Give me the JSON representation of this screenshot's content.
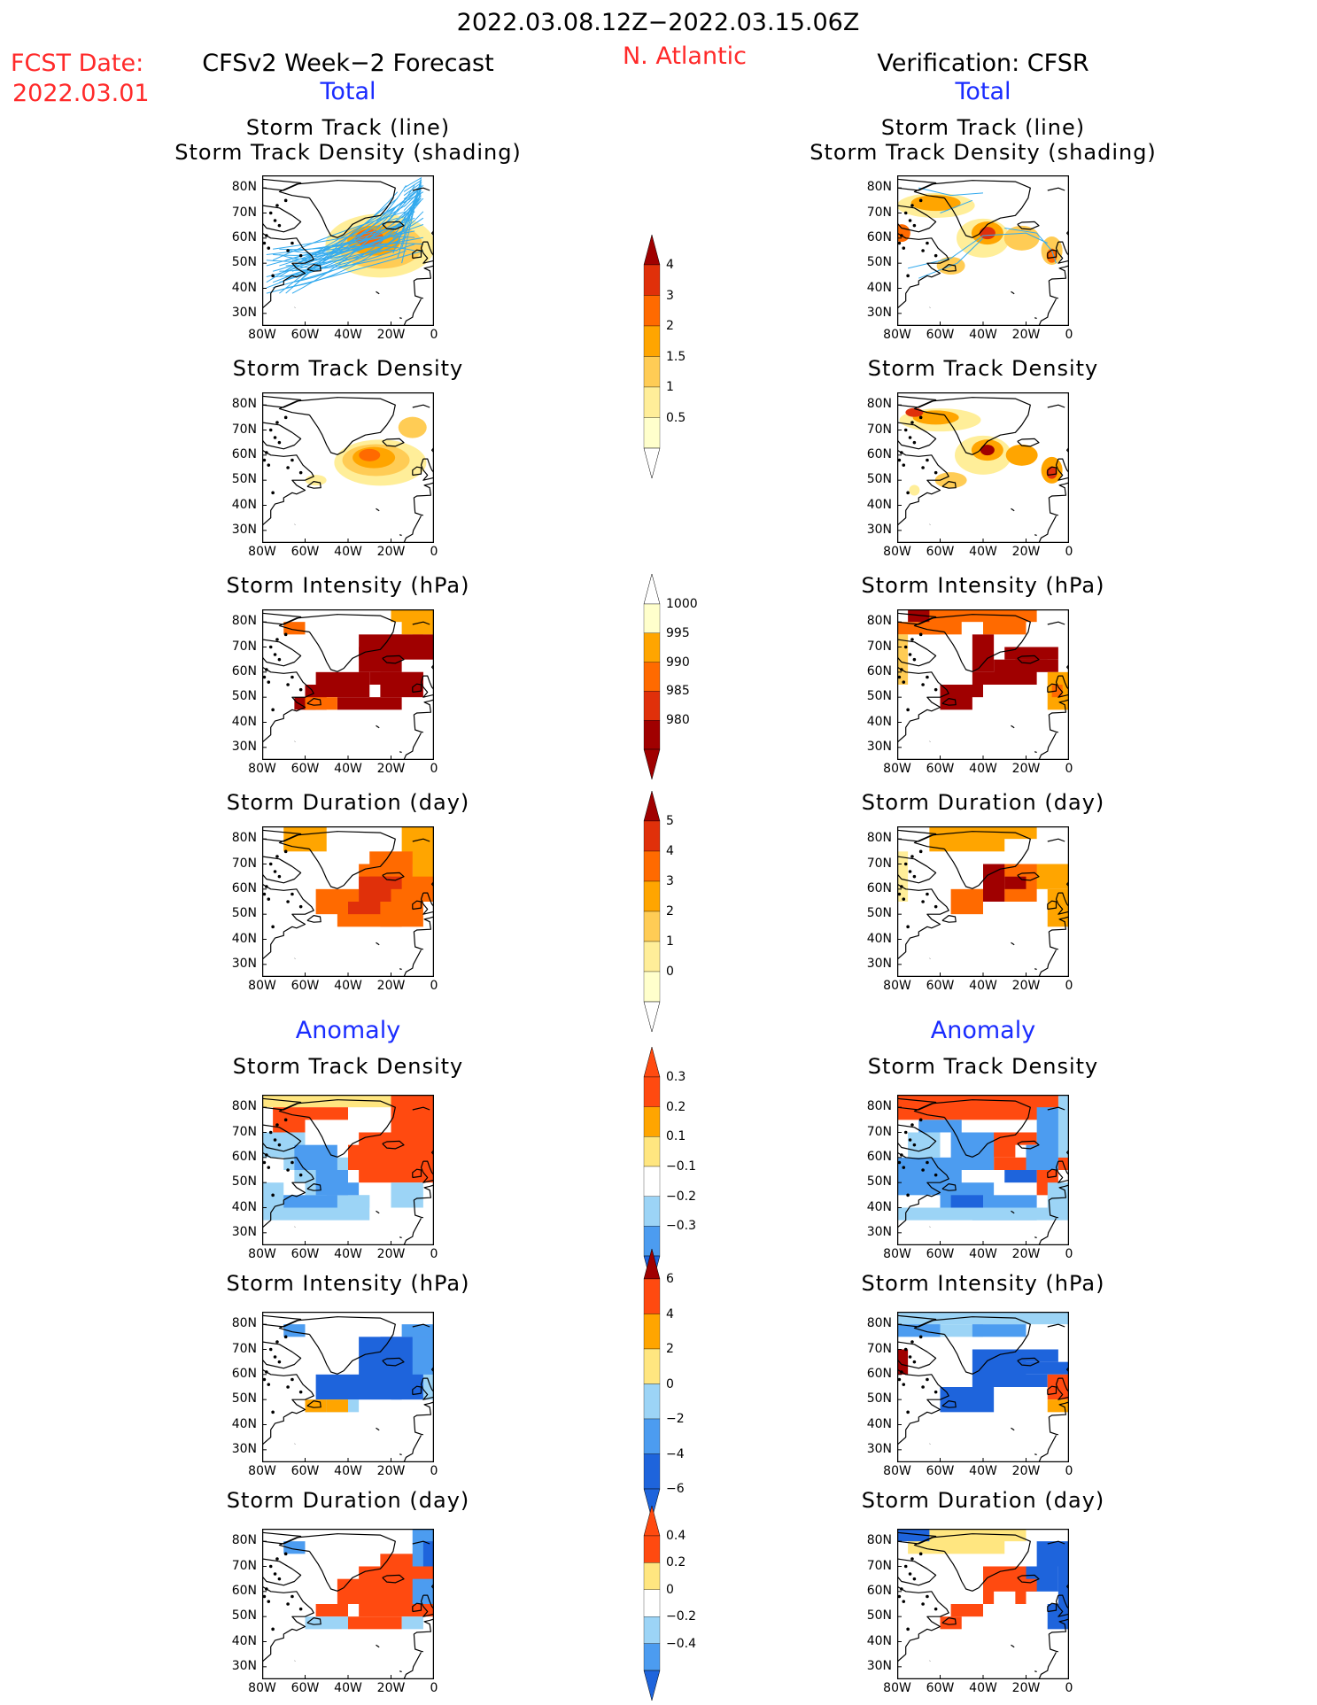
{
  "header": {
    "period": "2022.03.08.12Z−2022.03.15.06Z",
    "fcst_label": "FCST Date:",
    "fcst_date": "2022.03.01",
    "forecast_title": "CFSv2 Week−2 Forecast",
    "region": "N. Atlantic",
    "verification_title": "Verification: CFSR",
    "left_total": "Total",
    "right_total": "Total",
    "left_anomaly": "Anomaly",
    "right_anomaly": "Anomaly"
  },
  "axis": {
    "lat_ticks": [
      "80N",
      "70N",
      "60N",
      "50N",
      "40N",
      "30N"
    ],
    "lon_ticks": [
      "80W",
      "60W",
      "40W",
      "20W",
      "0"
    ]
  },
  "colors": {
    "track_line": "#33aaee",
    "levels_warm": [
      "#ffffcc",
      "#ffee99",
      "#ffcc55",
      "#ffa500",
      "#ff6a00",
      "#e0300a",
      "#a00000"
    ],
    "levels_anom": [
      "#1e64dc",
      "#4c9cf0",
      "#9cd4f6",
      "#ffffff",
      "#ffe680",
      "#ffa500",
      "#ff4a10",
      "#a00000"
    ]
  },
  "panels": {
    "titles": {
      "track_line": "Storm Track (line)",
      "track_shading": "Storm Track Density (shading)",
      "density": "Storm Track Density",
      "intensity": "Storm Intensity (hPa)",
      "duration": "Storm Duration (day)"
    }
  },
  "chart_data": [
    {
      "type": "heatmap",
      "title": "Storm Track (line) / Storm Track Density (shading)",
      "panel": "CFSv2 Week−2 Forecast, Total",
      "xlim": [
        "80W",
        "0"
      ],
      "ylim": [
        "25N",
        "85N"
      ],
      "colorbar": {
        "levels": [
          0.5,
          1,
          1.5,
          2,
          3,
          4
        ]
      },
      "summary": {
        "max_density_near": {
          "lon": "30W",
          "lat": "60N"
        },
        "peak_level": 3
      }
    },
    {
      "type": "heatmap",
      "title": "Storm Track (line) / Storm Track Density (shading)",
      "panel": "Verification: CFSR, Total",
      "xlim": [
        "80W",
        "0"
      ],
      "ylim": [
        "25N",
        "85N"
      ],
      "colorbar": {
        "levels": [
          0.5,
          1,
          1.5,
          2,
          3,
          4
        ]
      },
      "summary": {
        "max_density_near": {
          "lon": "40W",
          "lat": "63N"
        },
        "peak_level": 4
      }
    },
    {
      "type": "heatmap",
      "title": "Storm Track Density",
      "panel": "CFSv2 Week−2 Forecast, Total",
      "colorbar": {
        "levels": [
          0.5,
          1,
          1.5,
          2,
          3,
          4
        ]
      }
    },
    {
      "type": "heatmap",
      "title": "Storm Track Density",
      "panel": "Verification: CFSR, Total",
      "colorbar": {
        "levels": [
          0.5,
          1,
          1.5,
          2,
          3,
          4
        ]
      }
    },
    {
      "type": "heatmap",
      "title": "Storm Intensity (hPa)",
      "panel": "CFSv2 Week−2 Forecast, Total",
      "colorbar": {
        "levels": [
          980,
          985,
          990,
          995,
          1000
        ]
      }
    },
    {
      "type": "heatmap",
      "title": "Storm Intensity (hPa)",
      "panel": "Verification: CFSR, Total",
      "colorbar": {
        "levels": [
          980,
          985,
          990,
          995,
          1000
        ]
      }
    },
    {
      "type": "heatmap",
      "title": "Storm Duration (day)",
      "panel": "CFSv2 Week−2 Forecast, Total",
      "colorbar": {
        "levels": [
          0,
          1,
          2,
          3,
          4,
          5
        ]
      }
    },
    {
      "type": "heatmap",
      "title": "Storm Duration (day)",
      "panel": "Verification: CFSR, Total",
      "colorbar": {
        "levels": [
          0,
          1,
          2,
          3,
          4,
          5
        ]
      }
    },
    {
      "type": "heatmap",
      "title": "Storm Track Density",
      "panel": "CFSv2 Week−2 Forecast, Anomaly",
      "colorbar": {
        "levels": [
          -0.3,
          -0.2,
          -0.1,
          0.1,
          0.2,
          0.3
        ]
      }
    },
    {
      "type": "heatmap",
      "title": "Storm Track Density",
      "panel": "Verification: CFSR, Anomaly",
      "colorbar": {
        "levels": [
          -0.3,
          -0.2,
          -0.1,
          0.1,
          0.2,
          0.3
        ]
      }
    },
    {
      "type": "heatmap",
      "title": "Storm Intensity (hPa)",
      "panel": "CFSv2 Week−2 Forecast, Anomaly",
      "colorbar": {
        "levels": [
          -6,
          -4,
          -2,
          0,
          2,
          4,
          6
        ]
      }
    },
    {
      "type": "heatmap",
      "title": "Storm Intensity (hPa)",
      "panel": "Verification: CFSR, Anomaly",
      "colorbar": {
        "levels": [
          -6,
          -4,
          -2,
          0,
          2,
          4,
          6
        ]
      }
    },
    {
      "type": "heatmap",
      "title": "Storm Duration (day)",
      "panel": "CFSv2 Week−2 Forecast, Anomaly",
      "colorbar": {
        "levels": [
          -0.4,
          -0.2,
          0,
          0.2,
          0.4
        ]
      }
    },
    {
      "type": "heatmap",
      "title": "Storm Duration (day)",
      "panel": "Verification: CFSR, Anomaly",
      "colorbar": {
        "levels": [
          -0.4,
          -0.2,
          0,
          0.2,
          0.4
        ]
      }
    }
  ],
  "colorbars": {
    "density": [
      "4",
      "3",
      "2",
      "1.5",
      "1",
      "0.5"
    ],
    "intensity": [
      "1000",
      "995",
      "990",
      "985",
      "980"
    ],
    "duration": [
      "5",
      "4",
      "3",
      "2",
      "1",
      "0"
    ],
    "anom_density": [
      "0.3",
      "0.2",
      "0.1",
      "−0.1",
      "−0.2",
      "−0.3"
    ],
    "anom_intensity": [
      "6",
      "4",
      "2",
      "0",
      "−2",
      "−4",
      "−6"
    ],
    "anom_duration": [
      "0.4",
      "0.2",
      "0",
      "−0.2",
      "−0.4"
    ]
  }
}
